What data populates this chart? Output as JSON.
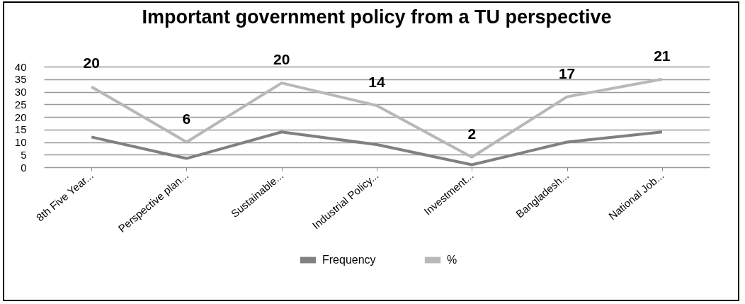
{
  "chart_data": {
    "type": "line",
    "title": "Important government policy from a TU perspective",
    "categories": [
      "8th Five Year...",
      "Perspective plan...",
      "Sustainable...",
      "Industrial Policy...",
      "Investment...",
      "Bangladesh...",
      "National Job..."
    ],
    "series": [
      {
        "name": "Frequency",
        "color": "#808084",
        "values": [
          12,
          3.5,
          14,
          9,
          1,
          10,
          14
        ]
      },
      {
        "name": "%",
        "color": "#b8b8bc",
        "values": [
          32,
          10,
          33.5,
          24.5,
          4,
          28,
          35
        ]
      }
    ],
    "annotations": [
      {
        "text": "20",
        "x": "8th Five Year...",
        "y": 32
      },
      {
        "text": "6",
        "x": "Perspective plan...",
        "y": 10
      },
      {
        "text": "20",
        "x": "Sustainable...",
        "y": 33.5
      },
      {
        "text": "14",
        "x": "Industrial Policy...",
        "y": 24.5
      },
      {
        "text": "2",
        "x": "Investment...",
        "y": 4
      },
      {
        "text": "17",
        "x": "Bangladesh...",
        "y": 28
      },
      {
        "text": "21",
        "x": "National Job...",
        "y": 35
      }
    ],
    "ylim": [
      0,
      40
    ],
    "yticks": [
      0,
      5,
      10,
      15,
      20,
      25,
      30,
      35,
      40
    ],
    "grid": "y",
    "legend": "bottom",
    "line_style": "solid",
    "marker": "none"
  }
}
